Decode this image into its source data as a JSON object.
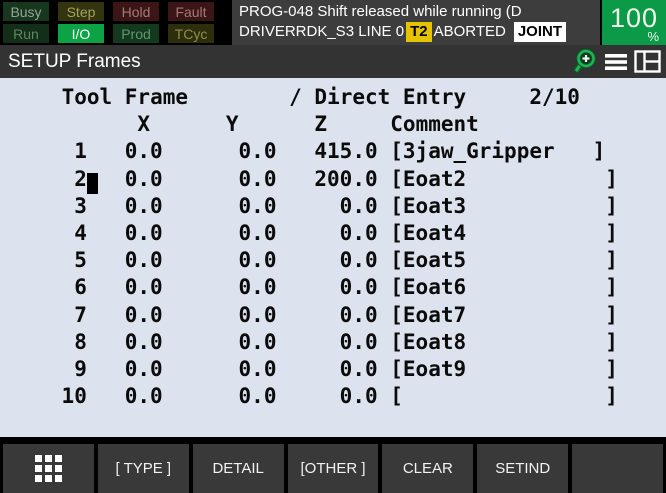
{
  "status_bar": {
    "leds": [
      {
        "label": "Busy",
        "bg": "#17381f",
        "fg": "#93a495"
      },
      {
        "label": "Step",
        "bg": "#34340e",
        "fg": "#a3a35f"
      },
      {
        "label": "Hold",
        "bg": "#3c1616",
        "fg": "#a47777"
      },
      {
        "label": "Fault",
        "bg": "#3c1616",
        "fg": "#a47777"
      },
      {
        "label": "Run",
        "bg": "#132e19",
        "fg": "#5c8a60"
      },
      {
        "label": "I/O",
        "bg": "#0ca344",
        "fg": "#ffffff"
      },
      {
        "label": "Prod",
        "bg": "#133a1e",
        "fg": "#62966c"
      },
      {
        "label": "TCyc",
        "bg": "#2e2e0c",
        "fg": "#8f8f4c"
      }
    ],
    "message_line1": "PROG-048 Shift released while running (D",
    "message_line2_prefix": "DRIVERRDK_S3 LINE 0",
    "badge_t2": "T2",
    "message_line2_mid": "ABORTED",
    "badge_joint": "JOINT",
    "speed_value": "100",
    "speed_unit": "%",
    "colors": {
      "speed_bg": "#0a9a48",
      "t2_bg": "#e6c300",
      "joint_bg": "#ffffff"
    }
  },
  "title_bar": {
    "title": "SETUP Frames",
    "icons": [
      "zoom-icon",
      "menu-icon",
      "split-panes-icon"
    ]
  },
  "table": {
    "header1": {
      "left": "Tool Frame",
      "mid": "/ Direct Entry",
      "page": "2/10"
    },
    "header2": {
      "x": "X",
      "y": "Y",
      "z": "Z",
      "comment": "Comment"
    },
    "bracket_open": "[",
    "bracket_close": "]",
    "rows": [
      {
        "n": "1",
        "x": "0.0",
        "y": "0.0",
        "z": "415.0",
        "comment": "3jaw_Gripper   ",
        "cursor": false
      },
      {
        "n": "2",
        "x": "0.0",
        "y": "0.0",
        "z": "200.0",
        "comment": "Eoat2           ",
        "cursor": true
      },
      {
        "n": "3",
        "x": "0.0",
        "y": "0.0",
        "z": "0.0",
        "comment": "Eoat3           ",
        "cursor": false
      },
      {
        "n": "4",
        "x": "0.0",
        "y": "0.0",
        "z": "0.0",
        "comment": "Eoat4           ",
        "cursor": false
      },
      {
        "n": "5",
        "x": "0.0",
        "y": "0.0",
        "z": "0.0",
        "comment": "Eoat5           ",
        "cursor": false
      },
      {
        "n": "6",
        "x": "0.0",
        "y": "0.0",
        "z": "0.0",
        "comment": "Eoat6           ",
        "cursor": false
      },
      {
        "n": "7",
        "x": "0.0",
        "y": "0.0",
        "z": "0.0",
        "comment": "Eoat7           ",
        "cursor": false
      },
      {
        "n": "8",
        "x": "0.0",
        "y": "0.0",
        "z": "0.0",
        "comment": "Eoat8           ",
        "cursor": false
      },
      {
        "n": "9",
        "x": "0.0",
        "y": "0.0",
        "z": "0.0",
        "comment": "Eoat9           ",
        "cursor": false
      },
      {
        "n": "10",
        "x": "0.0",
        "y": "0.0",
        "z": "0.0",
        "comment": "                ",
        "cursor": false
      }
    ]
  },
  "softkeys": {
    "items": [
      {
        "label": "",
        "icon": "menu-grid-icon"
      },
      {
        "label": "[ TYPE ]"
      },
      {
        "label": "DETAIL"
      },
      {
        "label": "[OTHER ]"
      },
      {
        "label": "CLEAR"
      },
      {
        "label": "SETIND"
      },
      {
        "label": ""
      }
    ]
  }
}
